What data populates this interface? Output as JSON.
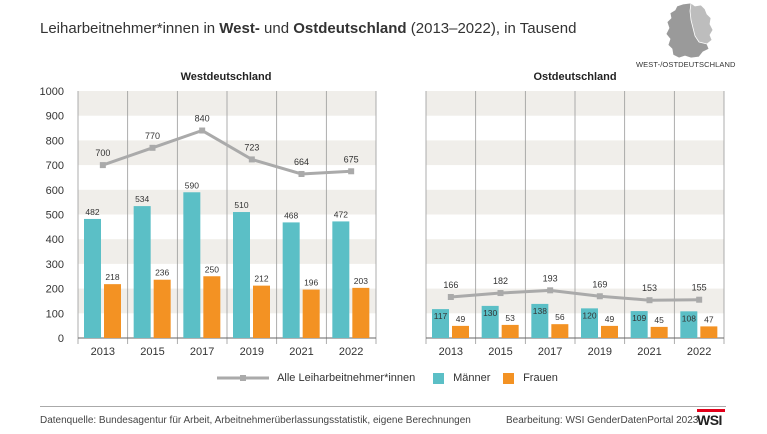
{
  "title": {
    "prefix": "Leiharbeitnehmer*innen in ",
    "west": "West-",
    "und": " und ",
    "ost": "Ostdeutschland",
    "suffix": " (2013–2022), in Tausend"
  },
  "map_label": "WEST-/OSTDEUTSCHLAND",
  "legend": {
    "total": "Alle Leiharbeitnehmer*innen",
    "men": "Männer",
    "women": "Frauen"
  },
  "footer": {
    "source": "Datenquelle:  Bundesagentur für Arbeit, Arbeitnehmerüberlassungsstatistik, eigene Berechnungen",
    "credit": "Bearbeitung: WSI GenderDatenPortal 2023",
    "logo": "WSI"
  },
  "colors": {
    "men": "#5bbfc6",
    "women": "#f39223",
    "total": "#aaaaaa",
    "band": "#f0eeea"
  },
  "chart_data": [
    {
      "type": "bar",
      "title": "Westdeutschland",
      "categories": [
        "2013",
        "2015",
        "2017",
        "2019",
        "2021",
        "2022"
      ],
      "ylim": [
        0,
        1000
      ],
      "yticks": [
        0,
        100,
        200,
        300,
        400,
        500,
        600,
        700,
        800,
        900,
        1000
      ],
      "series": [
        {
          "name": "Männer",
          "kind": "bar",
          "values": [
            482,
            534,
            590,
            510,
            468,
            472
          ]
        },
        {
          "name": "Frauen",
          "kind": "bar",
          "values": [
            218,
            236,
            250,
            212,
            196,
            203
          ]
        },
        {
          "name": "Alle Leiharbeitnehmer*innen",
          "kind": "line",
          "values": [
            700,
            770,
            840,
            723,
            664,
            675
          ]
        }
      ]
    },
    {
      "type": "bar",
      "title": "Ostdeutschland",
      "categories": [
        "2013",
        "2015",
        "2017",
        "2019",
        "2021",
        "2022"
      ],
      "ylim": [
        0,
        1000
      ],
      "series": [
        {
          "name": "Männer",
          "kind": "bar",
          "values": [
            117,
            130,
            138,
            120,
            109,
            108
          ]
        },
        {
          "name": "Frauen",
          "kind": "bar",
          "values": [
            49,
            53,
            56,
            49,
            45,
            47
          ]
        },
        {
          "name": "Alle Leiharbeitnehmer*innen",
          "kind": "line",
          "values": [
            166,
            182,
            193,
            169,
            153,
            155
          ]
        }
      ]
    }
  ]
}
